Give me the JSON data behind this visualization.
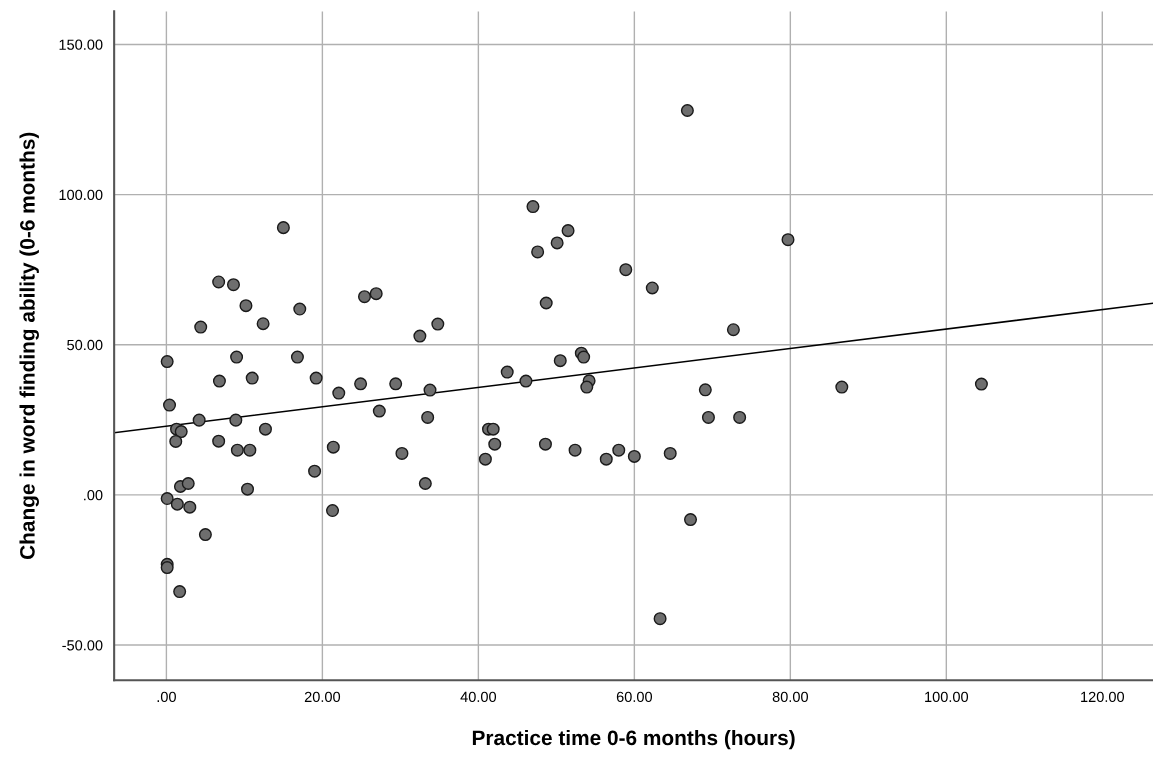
{
  "chart_data": {
    "type": "scatter",
    "xlabel": "Practice time 0-6 months (hours)",
    "ylabel": "Change in word finding ability (0-6 months)",
    "xlim": [
      -6.7,
      126.5
    ],
    "ylim": [
      -61.7,
      161
    ],
    "xticks": [
      {
        "value": 0,
        "label": ".00"
      },
      {
        "value": 20,
        "label": "20.00"
      },
      {
        "value": 40,
        "label": "40.00"
      },
      {
        "value": 60,
        "label": "60.00"
      },
      {
        "value": 80,
        "label": "80.00"
      },
      {
        "value": 100,
        "label": "100.00"
      },
      {
        "value": 120,
        "label": "120.00"
      }
    ],
    "yticks": [
      {
        "value": -50,
        "label": "-50.00"
      },
      {
        "value": 0,
        "label": ".00"
      },
      {
        "value": 50,
        "label": "50.00"
      },
      {
        "value": 100,
        "label": "100.00"
      },
      {
        "value": 150,
        "label": "150.00"
      }
    ],
    "grid": true,
    "series": [
      {
        "marker": "circle",
        "color": "#6e6e6e",
        "x": [
          0.1,
          6.8,
          11,
          19.2,
          22.1,
          24.9,
          29.4,
          33.8,
          0.4,
          4.2,
          8.9,
          27.3,
          33.5,
          1.3,
          1.9,
          1.2,
          12.7,
          6.7,
          9.1,
          10.7,
          21.4,
          30.2,
          19,
          33.2,
          1.8,
          2.8,
          10.4,
          0.1,
          1.4,
          3,
          21.3,
          5,
          0.1,
          0.1,
          1.7,
          15,
          6.7,
          8.6,
          10.2,
          17.1,
          4.4,
          12.4,
          25.4,
          26.9,
          32.5,
          34.8,
          9,
          16.8,
          43.7,
          46.1,
          50.5,
          53.2,
          53.5,
          54.2,
          53.9,
          41.3,
          41.9,
          42.1,
          40.9,
          48.6,
          52.4,
          56.4,
          58,
          60,
          64.6,
          69.1,
          69.5,
          73.5,
          86.6,
          67.2,
          63.3,
          47,
          51.5,
          50.1,
          47.6,
          48.7,
          66.8,
          58.9,
          62.3,
          79.7,
          72.7,
          104.5
        ],
        "values": [
          44.4,
          37.9,
          38.9,
          38.9,
          33.9,
          37,
          37,
          34.9,
          29.9,
          24.9,
          24.9,
          27.9,
          25.8,
          21.9,
          21.1,
          17.8,
          21.9,
          17.9,
          14.9,
          14.9,
          15.9,
          13.8,
          7.9,
          3.8,
          2.8,
          3.8,
          1.9,
          -1.2,
          -3.1,
          -4.1,
          -5.2,
          -13.2,
          -23.1,
          -24.2,
          -32.2,
          89,
          70.9,
          70,
          63,
          61.9,
          55.9,
          57,
          66,
          67,
          52.9,
          56.9,
          45.9,
          45.9,
          40.9,
          37.9,
          44.7,
          47.2,
          45.9,
          38,
          35.9,
          21.9,
          21.9,
          16.9,
          11.9,
          16.9,
          14.9,
          11.9,
          14.9,
          12.8,
          13.8,
          35,
          25.8,
          25.8,
          35.9,
          -8.2,
          -41.2,
          96,
          88,
          83.9,
          80.9,
          63.9,
          128,
          75,
          68.9,
          85,
          55,
          36.9
        ]
      },
      {
        "type": "line",
        "marker": "none",
        "color": "#000000",
        "x": [
          -6.7,
          126.5
        ],
        "values": [
          20.7,
          63.8
        ]
      }
    ]
  }
}
